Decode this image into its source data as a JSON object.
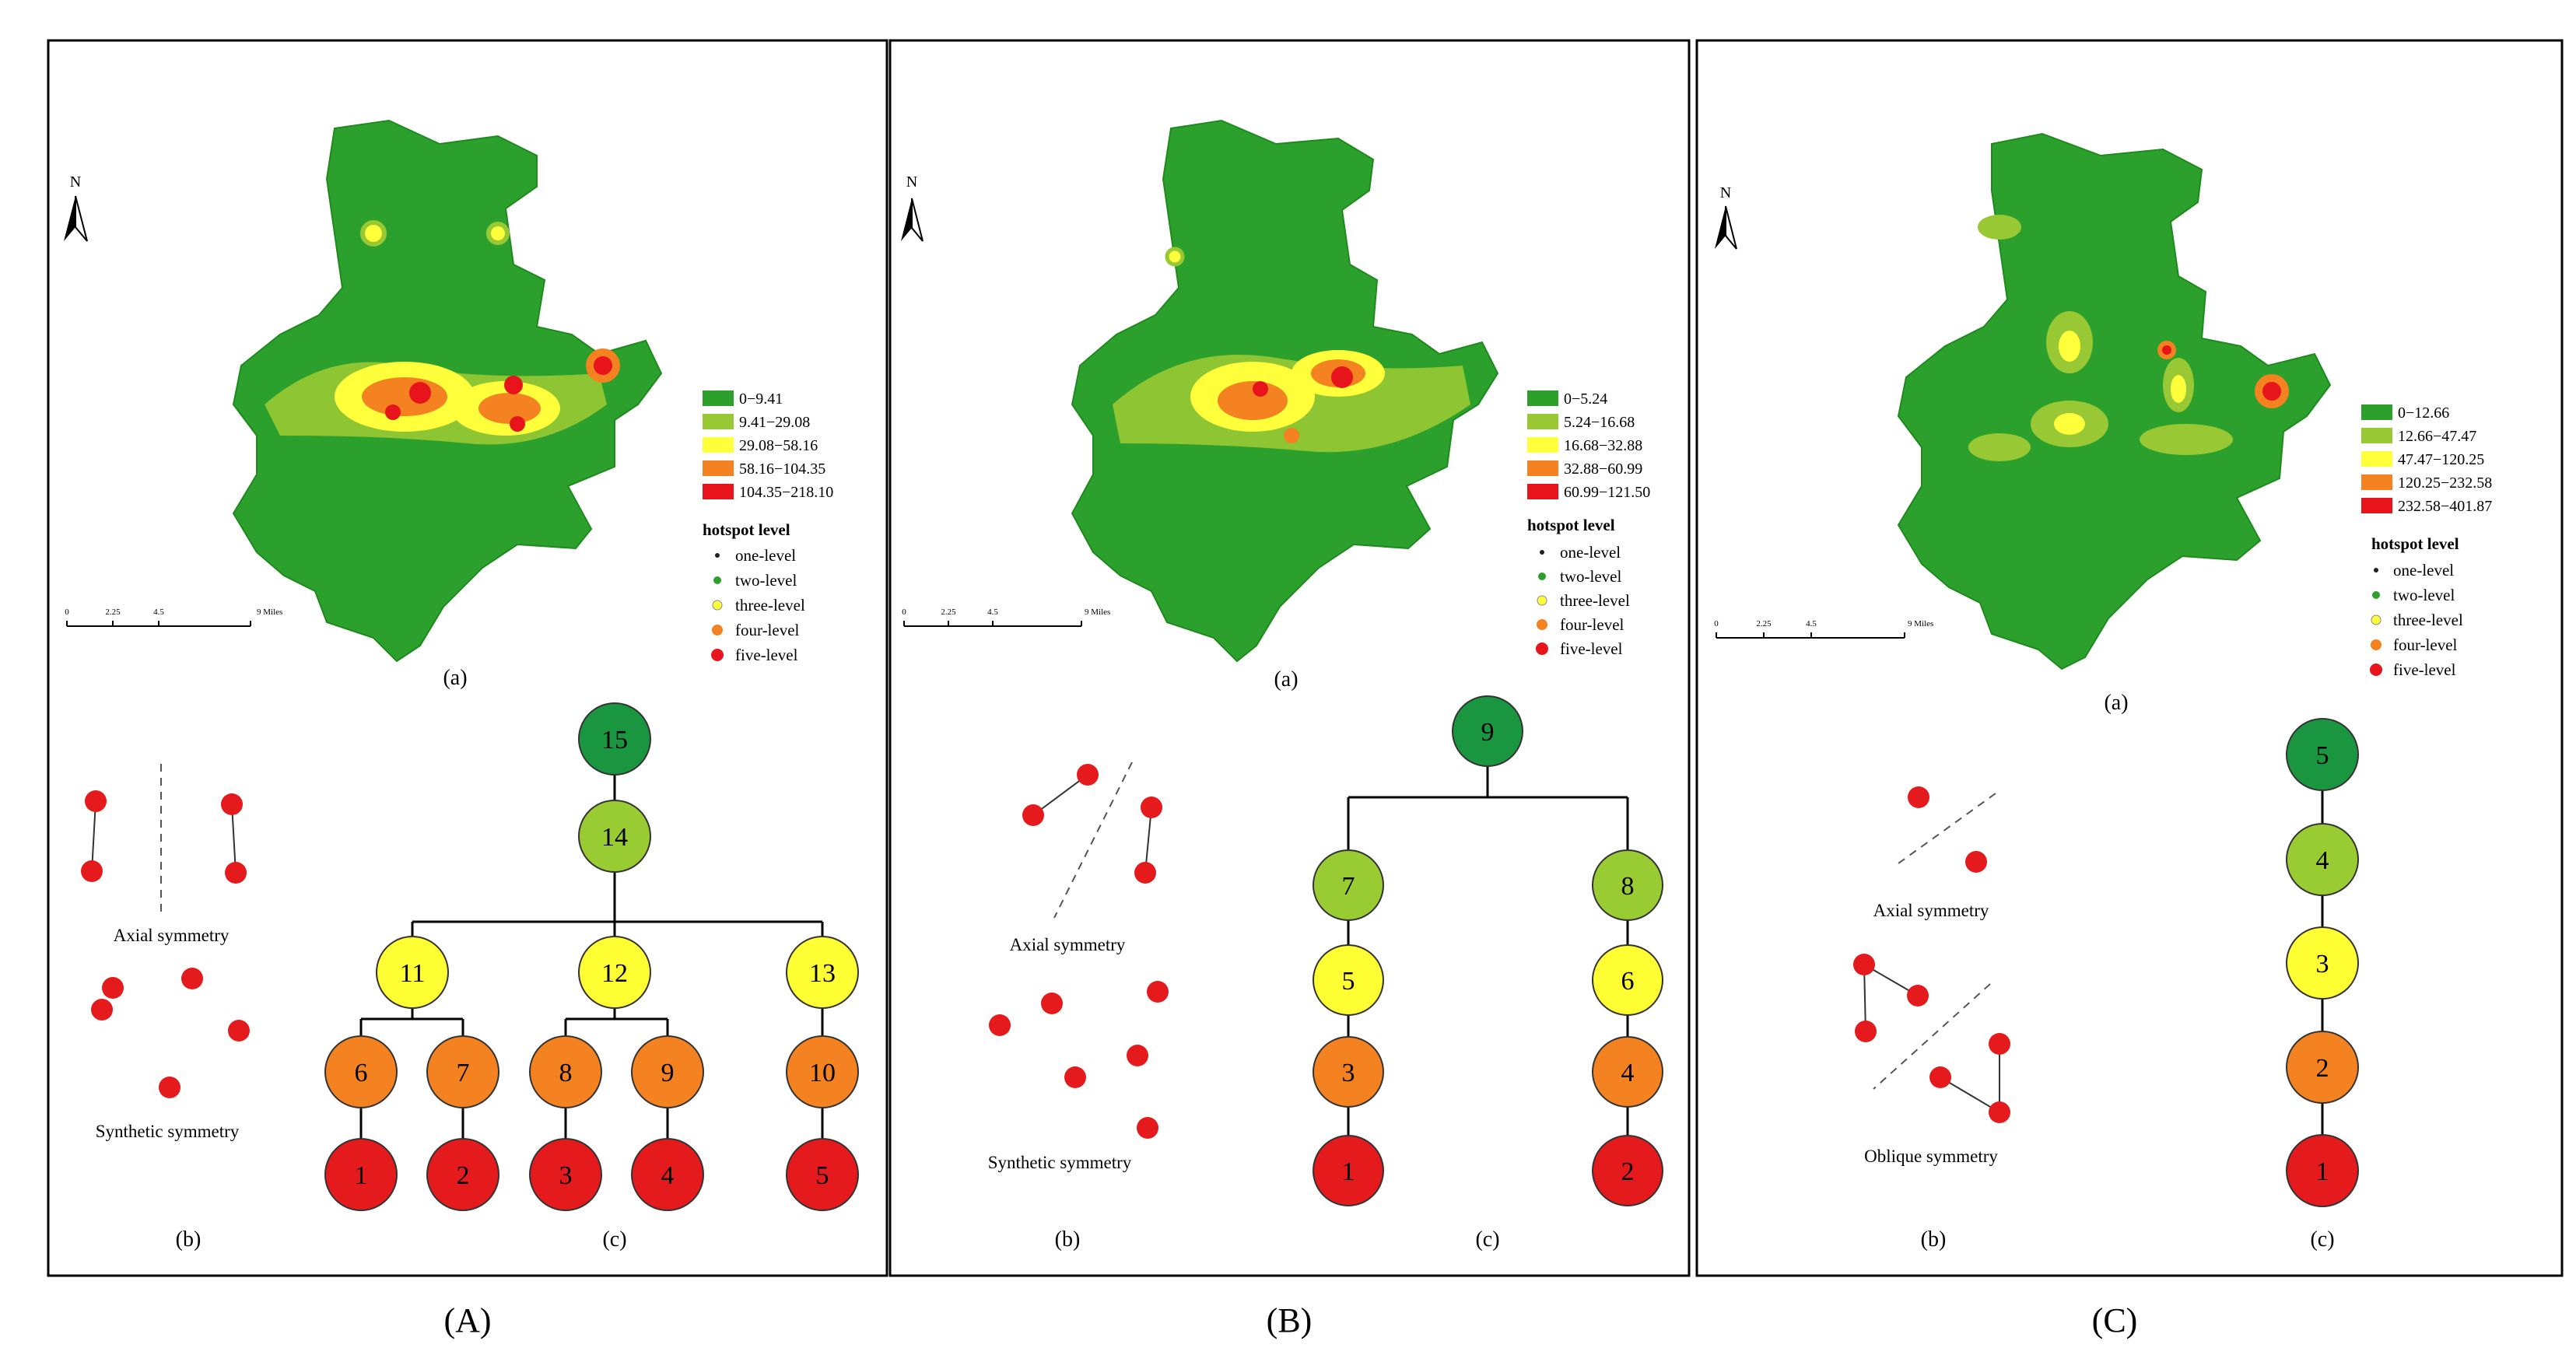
{
  "colors": {
    "level1": "#e41a1c",
    "level2": "#f4a460",
    "level2_fill": "#f58220",
    "level3": "#ffff33",
    "level4": "#99cc33",
    "level5": "#1a9641",
    "map_green": "#2ca02c",
    "node_stroke": "#333333",
    "legend_bins": [
      "#2da02c",
      "#98c934",
      "#ffff3b",
      "#f58220",
      "#e8141c"
    ]
  },
  "legend_title": "hotspot level",
  "legend_levels": [
    "one-level",
    "two-level",
    "three-level",
    "four-level",
    "five-level"
  ],
  "north_label": "N",
  "scale_labels": [
    "0",
    "2.25",
    "4.5",
    "9 Miles"
  ],
  "panels": [
    {
      "label": "(A)",
      "sub_a": "(a)",
      "sub_b": "(b)",
      "sub_c": "(c)",
      "legend_ranges": [
        "0−9.41",
        "9.41−29.08",
        "29.08−58.16",
        "58.16−104.35",
        "104.35−218.10"
      ],
      "symmetry_labels": [
        "Axial symmetry",
        "Synthetic symmetry"
      ],
      "tree": {
        "nodes": [
          {
            "id": "15",
            "level": 5
          },
          {
            "id": "14",
            "level": 4
          },
          {
            "id": "11",
            "level": 3
          },
          {
            "id": "12",
            "level": 3
          },
          {
            "id": "13",
            "level": 3
          },
          {
            "id": "6",
            "level": 2
          },
          {
            "id": "7",
            "level": 2
          },
          {
            "id": "8",
            "level": 2
          },
          {
            "id": "9",
            "level": 2
          },
          {
            "id": "10",
            "level": 2
          },
          {
            "id": "1",
            "level": 1
          },
          {
            "id": "2",
            "level": 1
          },
          {
            "id": "3",
            "level": 1
          },
          {
            "id": "4",
            "level": 1
          },
          {
            "id": "5",
            "level": 1
          }
        ]
      }
    },
    {
      "label": "(B)",
      "sub_a": "(a)",
      "sub_b": "(b)",
      "sub_c": "(c)",
      "legend_ranges": [
        "0−5.24",
        "5.24−16.68",
        "16.68−32.88",
        "32.88−60.99",
        "60.99−121.50"
      ],
      "symmetry_labels": [
        "Axial symmetry",
        "Synthetic symmetry"
      ],
      "tree": {
        "nodes": [
          {
            "id": "9",
            "level": 5
          },
          {
            "id": "7",
            "level": 4
          },
          {
            "id": "8",
            "level": 4
          },
          {
            "id": "5",
            "level": 3
          },
          {
            "id": "6",
            "level": 3
          },
          {
            "id": "3",
            "level": 2
          },
          {
            "id": "4",
            "level": 2
          },
          {
            "id": "1",
            "level": 1
          },
          {
            "id": "2",
            "level": 1
          }
        ]
      }
    },
    {
      "label": "(C)",
      "sub_a": "(a)",
      "sub_b": "(b)",
      "sub_c": "(c)",
      "legend_ranges": [
        "0−12.66",
        "12.66−47.47",
        "47.47−120.25",
        "120.25−232.58",
        "232.58−401.87"
      ],
      "symmetry_labels": [
        "Axial symmetry",
        "Oblique symmetry"
      ],
      "tree": {
        "nodes": [
          {
            "id": "5",
            "level": 5
          },
          {
            "id": "4",
            "level": 4
          },
          {
            "id": "3",
            "level": 3
          },
          {
            "id": "2",
            "level": 2
          },
          {
            "id": "1",
            "level": 1
          }
        ]
      }
    }
  ]
}
